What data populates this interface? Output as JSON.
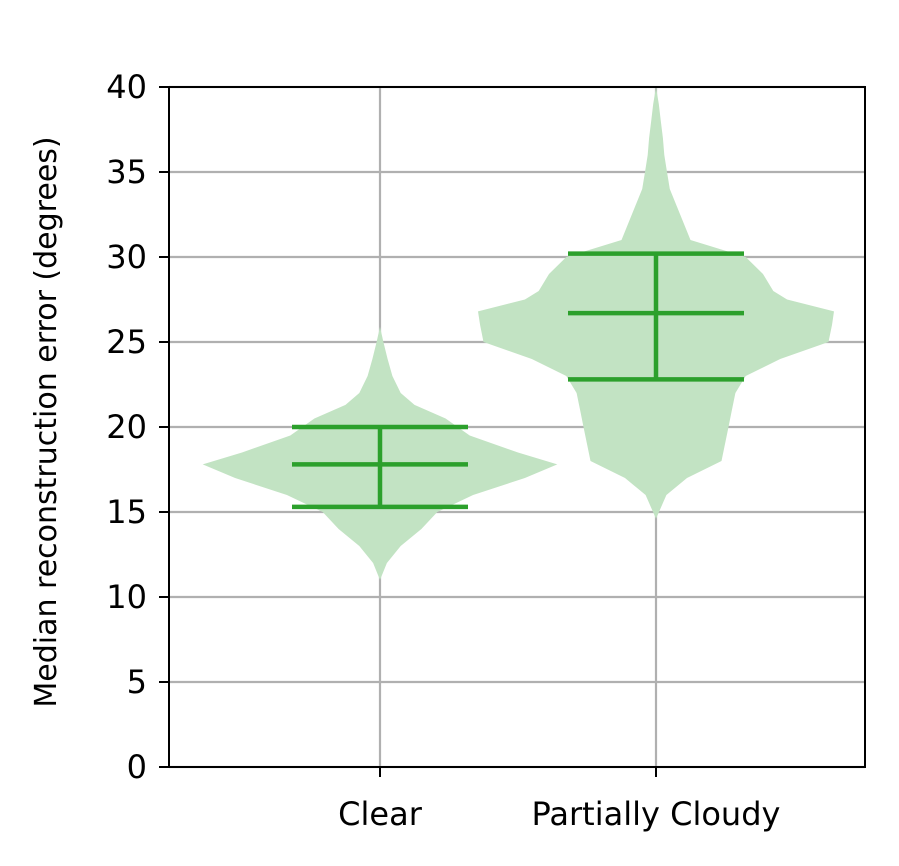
{
  "chart_data": {
    "type": "violin",
    "title": "",
    "xlabel": "",
    "ylabel": "Median reconstruction error (degrees)",
    "categories": [
      "Clear",
      "Partially Cloudy"
    ],
    "ylim": [
      0,
      40
    ],
    "yticks": [
      0,
      5,
      10,
      15,
      20,
      25,
      30,
      35,
      40
    ],
    "grid": true,
    "legend": "none",
    "fill_color": "#c2e3c3",
    "line_color": "#2ca02c",
    "violins": [
      {
        "category": "Clear",
        "min": 10.1,
        "max": 25.9,
        "lower_quartile": 15.3,
        "median": 17.8,
        "upper_quartile": 20.0,
        "density_profile": [
          [
            10.1,
            0.0
          ],
          [
            11.0,
            0.0
          ],
          [
            12.0,
            0.1
          ],
          [
            13.0,
            0.3
          ],
          [
            14.0,
            0.6
          ],
          [
            15.0,
            0.83
          ],
          [
            16.0,
            1.35
          ],
          [
            17.0,
            2.1
          ],
          [
            17.8,
            2.57
          ],
          [
            18.5,
            2.0
          ],
          [
            19.5,
            1.3
          ],
          [
            20.5,
            0.95
          ],
          [
            21.3,
            0.5
          ],
          [
            22.0,
            0.3
          ],
          [
            23.0,
            0.18
          ],
          [
            24.0,
            0.11
          ],
          [
            25.0,
            0.05
          ],
          [
            25.9,
            0.0
          ]
        ]
      },
      {
        "category": "Partially Cloudy",
        "min": 14.6,
        "max": 40.0,
        "lower_quartile": 22.8,
        "median": 26.7,
        "upper_quartile": 30.2,
        "density_profile": [
          [
            14.6,
            0.0
          ],
          [
            16.0,
            0.15
          ],
          [
            17.0,
            0.45
          ],
          [
            18.0,
            0.95
          ],
          [
            19.0,
            1.0
          ],
          [
            20.0,
            1.05
          ],
          [
            21.0,
            1.1
          ],
          [
            22.0,
            1.15
          ],
          [
            23.0,
            1.3
          ],
          [
            24.0,
            1.8
          ],
          [
            25.0,
            2.5
          ],
          [
            26.0,
            2.55
          ],
          [
            26.8,
            2.58
          ],
          [
            27.5,
            1.9
          ],
          [
            28.0,
            1.7
          ],
          [
            29.0,
            1.55
          ],
          [
            30.0,
            1.3
          ],
          [
            31.0,
            0.5
          ],
          [
            32.0,
            0.4
          ],
          [
            33.0,
            0.3
          ],
          [
            34.0,
            0.2
          ],
          [
            35.0,
            0.16
          ],
          [
            36.0,
            0.12
          ],
          [
            37.0,
            0.1
          ],
          [
            38.0,
            0.07
          ],
          [
            39.0,
            0.04
          ],
          [
            40.0,
            0.0
          ]
        ]
      }
    ]
  }
}
